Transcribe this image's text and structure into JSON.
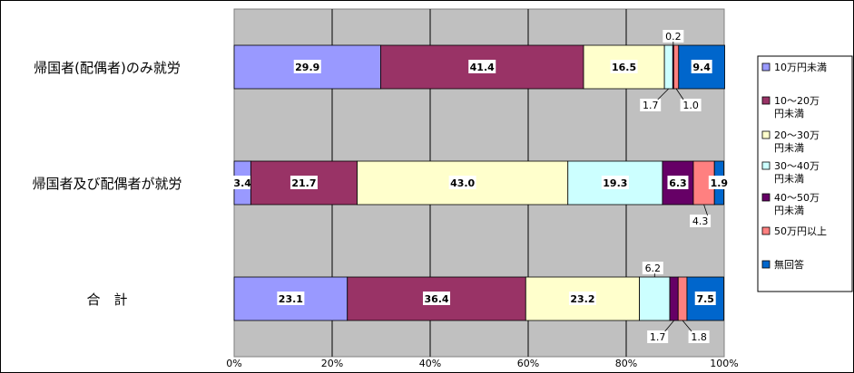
{
  "chart_data": {
    "type": "bar",
    "orientation": "horizontal-stacked-100",
    "categories": [
      "帰国者(配偶者)のみ就労",
      "帰国者及び配偶者が就労",
      "合　計"
    ],
    "series": [
      {
        "name": "10万円未満",
        "values": [
          29.9,
          3.4,
          23.1
        ],
        "color": "#9999ff"
      },
      {
        "name": "10〜20万円未満",
        "values": [
          41.4,
          21.7,
          36.4
        ],
        "color": "#993366"
      },
      {
        "name": "20〜30万円未満",
        "values": [
          16.5,
          43.0,
          23.2
        ],
        "color": "#ffffcc"
      },
      {
        "name": "30〜40万円未満",
        "values": [
          1.7,
          19.3,
          6.2
        ],
        "color": "#ccffff"
      },
      {
        "name": "40〜50万円未満",
        "values": [
          0.2,
          6.3,
          1.7
        ],
        "color": "#660066"
      },
      {
        "name": "50万円以上",
        "values": [
          1.0,
          4.3,
          1.8
        ],
        "color": "#ff8080"
      },
      {
        "name": "無回答",
        "values": [
          9.4,
          1.9,
          7.5
        ],
        "color": "#0066cc"
      }
    ],
    "x_ticks": [
      "0%",
      "20%",
      "40%",
      "60%",
      "80%",
      "100%"
    ],
    "xlim": [
      0,
      100
    ],
    "grid": true,
    "legend_position": "right",
    "plot_bg": "#c0c0c0"
  }
}
